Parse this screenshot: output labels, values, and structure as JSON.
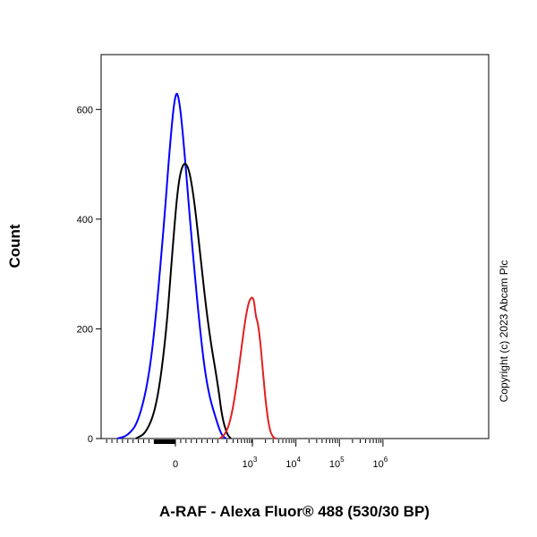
{
  "chart_data": {
    "type": "line",
    "title": "",
    "xlabel": "A-RAF - Alexa Fluor® 488 (530/30 BP)",
    "ylabel": "Count",
    "x_scale": "biexponential",
    "x_ticks": [
      {
        "value": 0,
        "base": "0",
        "exp": ""
      },
      {
        "value": 1000,
        "base": "10",
        "exp": "3"
      },
      {
        "value": 10000,
        "base": "10",
        "exp": "4"
      },
      {
        "value": 100000,
        "base": "10",
        "exp": "5"
      },
      {
        "value": 1000000,
        "base": "10",
        "exp": "6"
      }
    ],
    "y_ticks": [
      0,
      200,
      400,
      600
    ],
    "ylim": [
      0,
      700
    ],
    "grid": false,
    "legend": "none",
    "annotation": "Copyright (c) 2023 Abcam Plc",
    "series": [
      {
        "color": "#0000ff",
        "points": [
          [
            -220,
            0
          ],
          [
            -180,
            5
          ],
          [
            -140,
            30
          ],
          [
            -100,
            110
          ],
          [
            -70,
            240
          ],
          [
            -40,
            410
          ],
          [
            -20,
            540
          ],
          [
            0,
            635
          ],
          [
            15,
            620
          ],
          [
            35,
            520
          ],
          [
            60,
            370
          ],
          [
            90,
            210
          ],
          [
            120,
            90
          ],
          [
            160,
            25
          ],
          [
            200,
            5
          ],
          [
            250,
            0
          ]
        ]
      },
      {
        "color": "#000000",
        "points": [
          [
            -150,
            0
          ],
          [
            -110,
            10
          ],
          [
            -70,
            60
          ],
          [
            -35,
            190
          ],
          [
            -10,
            350
          ],
          [
            10,
            465
          ],
          [
            30,
            505
          ],
          [
            50,
            495
          ],
          [
            70,
            440
          ],
          [
            95,
            330
          ],
          [
            125,
            200
          ],
          [
            160,
            100
          ],
          [
            200,
            40
          ],
          [
            260,
            8
          ],
          [
            320,
            0
          ]
        ]
      },
      {
        "color": "#e02020",
        "points": [
          [
            180,
            0
          ],
          [
            250,
            10
          ],
          [
            330,
            40
          ],
          [
            430,
            95
          ],
          [
            550,
            160
          ],
          [
            680,
            215
          ],
          [
            800,
            245
          ],
          [
            900,
            255
          ],
          [
            1000,
            258
          ],
          [
            1100,
            250
          ],
          [
            1200,
            222
          ],
          [
            1350,
            210
          ],
          [
            1550,
            170
          ],
          [
            1800,
            110
          ],
          [
            2100,
            55
          ],
          [
            2500,
            15
          ],
          [
            3000,
            2
          ],
          [
            3500,
            0
          ]
        ]
      }
    ]
  }
}
